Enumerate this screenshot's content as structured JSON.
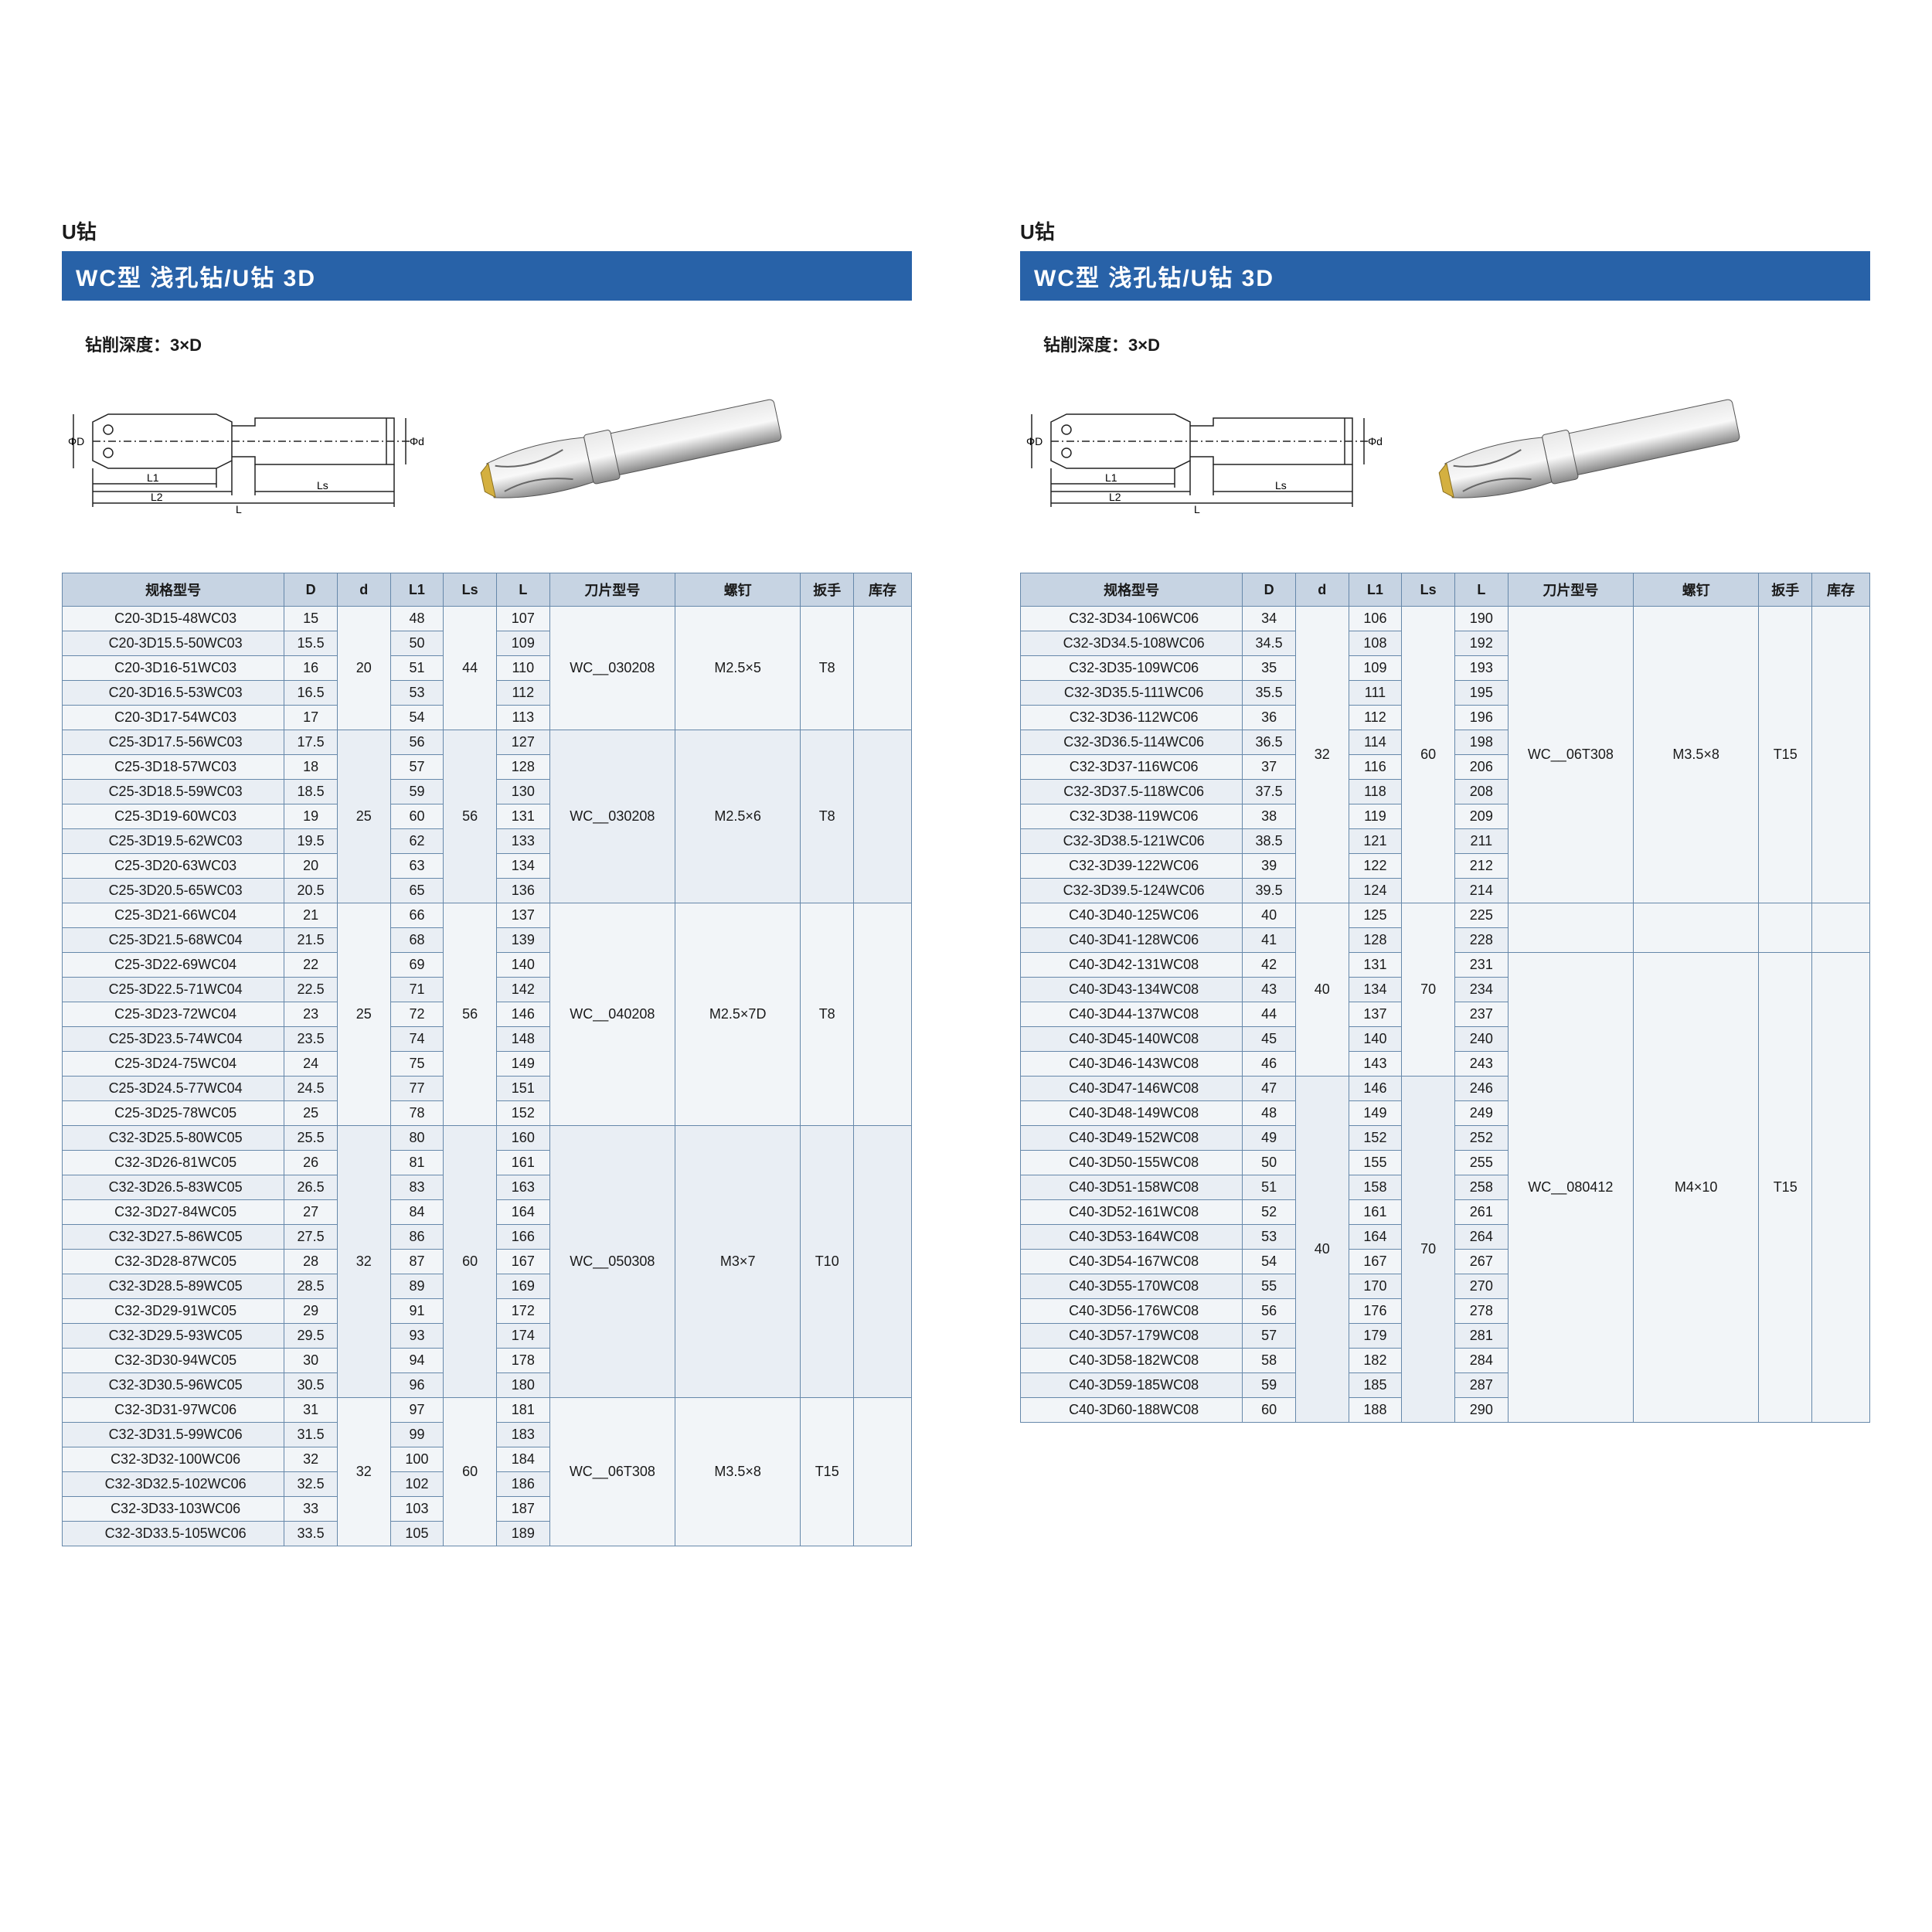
{
  "section_label": "U钻",
  "title_bar": "WC型 浅孔钻/U钻  3D",
  "depth_label": "钻削深度：3×D",
  "diagram_labels": {
    "phi_D": "ΦD",
    "phi_d": "Φd",
    "L1": "L1",
    "L2": "L2",
    "L": "L",
    "Ls": "Ls"
  },
  "columns": [
    "规格型号",
    "D",
    "d",
    "L1",
    "Ls",
    "L",
    "刀片型号",
    "螺钉",
    "扳手",
    "库存"
  ],
  "left_groups": [
    {
      "d": "20",
      "Ls": "44",
      "insert": "WC__030208",
      "screw": "M2.5×5",
      "wrench": "T8",
      "rows": [
        [
          "C20-3D15-48WC03",
          "15",
          "48",
          "107"
        ],
        [
          "C20-3D15.5-50WC03",
          "15.5",
          "50",
          "109"
        ],
        [
          "C20-3D16-51WC03",
          "16",
          "51",
          "110"
        ],
        [
          "C20-3D16.5-53WC03",
          "16.5",
          "53",
          "112"
        ],
        [
          "C20-3D17-54WC03",
          "17",
          "54",
          "113"
        ]
      ]
    },
    {
      "d": "25",
      "Ls": "56",
      "insert": "WC__030208",
      "screw": "M2.5×6",
      "wrench": "T8",
      "rows": [
        [
          "C25-3D17.5-56WC03",
          "17.5",
          "56",
          "127"
        ],
        [
          "C25-3D18-57WC03",
          "18",
          "57",
          "128"
        ],
        [
          "C25-3D18.5-59WC03",
          "18.5",
          "59",
          "130"
        ],
        [
          "C25-3D19-60WC03",
          "19",
          "60",
          "131"
        ],
        [
          "C25-3D19.5-62WC03",
          "19.5",
          "62",
          "133"
        ],
        [
          "C25-3D20-63WC03",
          "20",
          "63",
          "134"
        ],
        [
          "C25-3D20.5-65WC03",
          "20.5",
          "65",
          "136"
        ]
      ]
    },
    {
      "d": "25",
      "Ls": "56",
      "insert": "WC__040208",
      "screw": "M2.5×7D",
      "wrench": "T8",
      "rows": [
        [
          "C25-3D21-66WC04",
          "21",
          "66",
          "137"
        ],
        [
          "C25-3D21.5-68WC04",
          "21.5",
          "68",
          "139"
        ],
        [
          "C25-3D22-69WC04",
          "22",
          "69",
          "140"
        ],
        [
          "C25-3D22.5-71WC04",
          "22.5",
          "71",
          "142"
        ],
        [
          "C25-3D23-72WC04",
          "23",
          "72",
          "146"
        ],
        [
          "C25-3D23.5-74WC04",
          "23.5",
          "74",
          "148"
        ],
        [
          "C25-3D24-75WC04",
          "24",
          "75",
          "149"
        ],
        [
          "C25-3D24.5-77WC04",
          "24.5",
          "77",
          "151"
        ],
        [
          "C25-3D25-78WC05",
          "25",
          "78",
          "152"
        ]
      ]
    },
    {
      "d": "32",
      "Ls": "60",
      "insert": "WC__050308",
      "screw": "M3×7",
      "wrench": "T10",
      "rows": [
        [
          "C32-3D25.5-80WC05",
          "25.5",
          "80",
          "160"
        ],
        [
          "C32-3D26-81WC05",
          "26",
          "81",
          "161"
        ],
        [
          "C32-3D26.5-83WC05",
          "26.5",
          "83",
          "163"
        ],
        [
          "C32-3D27-84WC05",
          "27",
          "84",
          "164"
        ],
        [
          "C32-3D27.5-86WC05",
          "27.5",
          "86",
          "166"
        ],
        [
          "C32-3D28-87WC05",
          "28",
          "87",
          "167"
        ],
        [
          "C32-3D28.5-89WC05",
          "28.5",
          "89",
          "169"
        ],
        [
          "C32-3D29-91WC05",
          "29",
          "91",
          "172"
        ],
        [
          "C32-3D29.5-93WC05",
          "29.5",
          "93",
          "174"
        ],
        [
          "C32-3D30-94WC05",
          "30",
          "94",
          "178"
        ],
        [
          "C32-3D30.5-96WC05",
          "30.5",
          "96",
          "180"
        ]
      ]
    },
    {
      "d": "32",
      "Ls": "60",
      "insert": "WC__06T308",
      "screw": "M3.5×8",
      "wrench": "T15",
      "rows": [
        [
          "C32-3D31-97WC06",
          "31",
          "97",
          "181"
        ],
        [
          "C32-3D31.5-99WC06",
          "31.5",
          "99",
          "183"
        ],
        [
          "C32-3D32-100WC06",
          "32",
          "100",
          "184"
        ],
        [
          "C32-3D32.5-102WC06",
          "32.5",
          "102",
          "186"
        ],
        [
          "C32-3D33-103WC06",
          "33",
          "103",
          "187"
        ],
        [
          "C32-3D33.5-105WC06",
          "33.5",
          "105",
          "189"
        ]
      ]
    }
  ],
  "right_groups": [
    {
      "d": "32",
      "Ls": "60",
      "insert": "WC__06T308",
      "screw": "M3.5×8",
      "wrench": "T15",
      "rows": [
        [
          "C32-3D34-106WC06",
          "34",
          "106",
          "190"
        ],
        [
          "C32-3D34.5-108WC06",
          "34.5",
          "108",
          "192"
        ],
        [
          "C32-3D35-109WC06",
          "35",
          "109",
          "193"
        ],
        [
          "C32-3D35.5-111WC06",
          "35.5",
          "111",
          "195"
        ],
        [
          "C32-3D36-112WC06",
          "36",
          "112",
          "196"
        ],
        [
          "C32-3D36.5-114WC06",
          "36.5",
          "114",
          "198"
        ],
        [
          "C32-3D37-116WC06",
          "37",
          "116",
          "206"
        ],
        [
          "C32-3D37.5-118WC06",
          "37.5",
          "118",
          "208"
        ],
        [
          "C32-3D38-119WC06",
          "38",
          "119",
          "209"
        ],
        [
          "C32-3D38.5-121WC06",
          "38.5",
          "121",
          "211"
        ],
        [
          "C32-3D39-122WC06",
          "39",
          "122",
          "212"
        ],
        [
          "C32-3D39.5-124WC06",
          "39.5",
          "124",
          "214"
        ]
      ]
    },
    {
      "extra_block": [
        [
          "C40-3D40-125WC06",
          "40",
          "125",
          "225"
        ],
        [
          "C40-3D41-128WC06",
          "41",
          "128",
          "228"
        ]
      ],
      "d": "40",
      "Ls": "70",
      "insert": "WC__080412",
      "screw": "M4×10",
      "wrench": "T15",
      "rows": [
        [
          "C40-3D42-131WC08",
          "42",
          "131",
          "231"
        ],
        [
          "C40-3D43-134WC08",
          "43",
          "134",
          "234"
        ],
        [
          "C40-3D44-137WC08",
          "44",
          "137",
          "237"
        ],
        [
          "C40-3D45-140WC08",
          "45",
          "140",
          "240"
        ],
        [
          "C40-3D46-143WC08",
          "46",
          "143",
          "243"
        ],
        [
          "C40-3D47-146WC08",
          "47",
          "146",
          "246"
        ],
        [
          "C40-3D48-149WC08",
          "48",
          "149",
          "249"
        ],
        [
          "C40-3D49-152WC08",
          "49",
          "152",
          "252"
        ],
        [
          "C40-3D50-155WC08",
          "50",
          "155",
          "255"
        ],
        [
          "C40-3D51-158WC08",
          "51",
          "158",
          "258"
        ],
        [
          "C40-3D52-161WC08",
          "52",
          "161",
          "261"
        ],
        [
          "C40-3D53-164WC08",
          "53",
          "164",
          "264"
        ],
        [
          "C40-3D54-167WC08",
          "54",
          "167",
          "267"
        ],
        [
          "C40-3D55-170WC08",
          "55",
          "170",
          "270"
        ],
        [
          "C40-3D56-176WC08",
          "56",
          "176",
          "278"
        ],
        [
          "C40-3D57-179WC08",
          "57",
          "179",
          "281"
        ],
        [
          "C40-3D58-182WC08",
          "58",
          "182",
          "284"
        ],
        [
          "C40-3D59-185WC08",
          "59",
          "185",
          "287"
        ],
        [
          "C40-3D60-188WC08",
          "60",
          "188",
          "290"
        ]
      ],
      "second_d": "40",
      "second_Ls": "70"
    }
  ]
}
